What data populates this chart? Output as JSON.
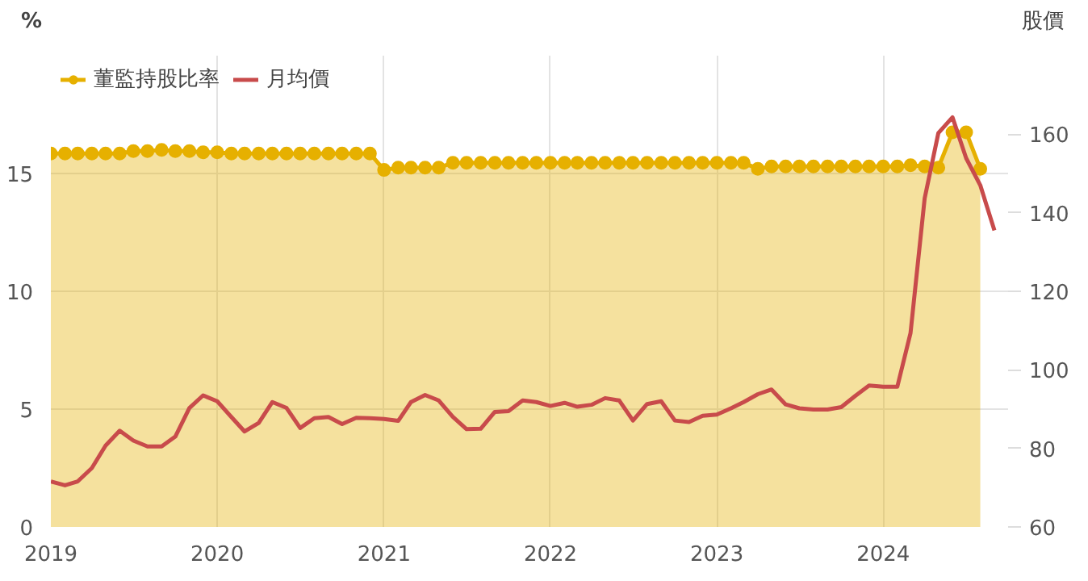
{
  "chart_data": {
    "type": "area",
    "x": [
      "2019-01",
      "2019-02",
      "2019-03",
      "2019-04",
      "2019-05",
      "2019-06",
      "2019-07",
      "2019-08",
      "2019-09",
      "2019-10",
      "2019-11",
      "2019-12",
      "2020-01",
      "2020-02",
      "2020-03",
      "2020-04",
      "2020-05",
      "2020-06",
      "2020-07",
      "2020-08",
      "2020-09",
      "2020-10",
      "2020-11",
      "2020-12",
      "2021-01",
      "2021-02",
      "2021-03",
      "2021-04",
      "2021-05",
      "2021-06",
      "2021-07",
      "2021-08",
      "2021-09",
      "2021-10",
      "2021-11",
      "2021-12",
      "2022-01",
      "2022-02",
      "2022-03",
      "2022-04",
      "2022-05",
      "2022-06",
      "2022-07",
      "2022-08",
      "2022-09",
      "2022-10",
      "2022-11",
      "2022-12",
      "2023-01",
      "2023-02",
      "2023-03",
      "2023-04",
      "2023-05",
      "2023-06",
      "2023-07",
      "2023-08",
      "2023-09",
      "2023-10",
      "2023-11",
      "2023-12",
      "2024-01",
      "2024-02",
      "2024-03",
      "2024-04",
      "2024-05",
      "2024-06",
      "2024-07",
      "2024-08",
      "2024-09"
    ],
    "series": [
      {
        "name": "董監持股比率",
        "color": "#e6b000",
        "marker": "circle",
        "values": [
          15.85,
          15.85,
          15.85,
          15.85,
          15.85,
          15.85,
          15.95,
          15.95,
          16.0,
          15.95,
          15.95,
          15.9,
          15.9,
          15.85,
          15.85,
          15.85,
          15.85,
          15.85,
          15.85,
          15.85,
          15.85,
          15.85,
          15.85,
          15.85,
          15.15,
          15.25,
          15.25,
          15.25,
          15.25,
          15.45,
          15.45,
          15.45,
          15.45,
          15.45,
          15.45,
          15.45,
          15.45,
          15.45,
          15.45,
          15.45,
          15.45,
          15.45,
          15.45,
          15.45,
          15.45,
          15.45,
          15.45,
          15.45,
          15.45,
          15.45,
          15.45,
          15.2,
          15.3,
          15.3,
          15.3,
          15.3,
          15.3,
          15.3,
          15.3,
          15.3,
          15.3,
          15.3,
          15.35,
          15.3,
          15.25,
          16.75,
          16.75,
          15.2,
          null
        ]
      },
      {
        "name": "月均價",
        "type": "line",
        "axis": "y2",
        "color": "#c84b4b",
        "values": [
          71.6,
          70.6,
          71.6,
          75,
          80.7,
          84.5,
          82,
          80.5,
          80.5,
          83,
          90.3,
          93.5,
          92,
          88,
          84.3,
          86.5,
          91.8,
          90.3,
          85.2,
          87.7,
          88,
          86.2,
          87.8,
          87.7,
          87.5,
          87,
          91.8,
          93.6,
          92.2,
          88,
          84.9,
          85,
          89.3,
          89.5,
          92.2,
          91.8,
          90.8,
          91.6,
          90.6,
          91.1,
          92.8,
          92.2,
          87.1,
          91.3,
          92,
          87.1,
          86.7,
          88.3,
          88.6,
          90.2,
          91.8,
          93.8,
          95,
          91.2,
          90.2,
          89.9,
          89.9,
          90.5,
          93.4,
          96,
          95.7,
          95.7,
          109.4,
          143.7,
          160.3,
          164.3,
          153.9,
          147,
          135.5
        ]
      }
    ],
    "xlim": [
      "2019-01-01",
      "2024-10-01"
    ],
    "xticks": [
      "2019",
      "2020",
      "2021",
      "2022",
      "2023",
      "2024"
    ],
    "ylim": [
      0,
      20
    ],
    "yticks": [
      0,
      5,
      10,
      15
    ],
    "y2lim": [
      60,
      180
    ],
    "y2ticks": [
      60,
      80,
      100,
      120,
      140,
      160
    ],
    "ylabel": "%",
    "y2label": "股價",
    "grid": true,
    "legend": "top left"
  }
}
